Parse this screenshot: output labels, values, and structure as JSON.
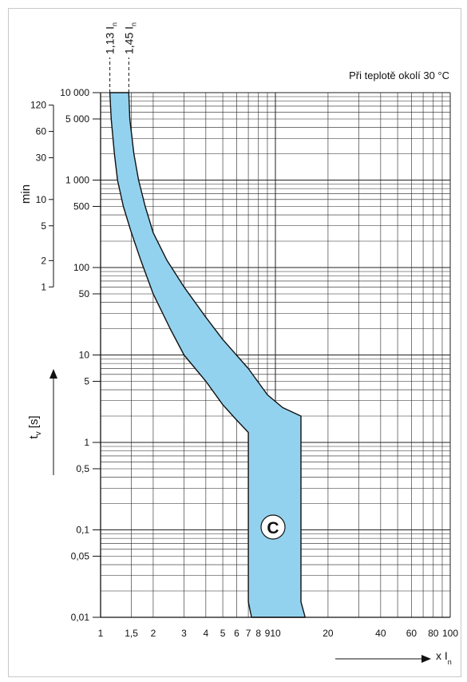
{
  "chart_data": {
    "type": "area",
    "title": "",
    "note": "Při teplotě okolí 30 °C",
    "curve_label": "C",
    "xlabel": {
      "main": "x I",
      "sub": "n"
    },
    "ylabel": {
      "main": "t",
      "sub": "v",
      "unit": "[s]"
    },
    "ylabel_min": "min",
    "xscale": "log",
    "yscale": "log",
    "xlim": [
      1,
      100
    ],
    "ylim": [
      0.01,
      10000
    ],
    "grid": true,
    "x_ticks": [
      {
        "v": 1,
        "label": "1"
      },
      {
        "v": 1.5,
        "label": "1,5"
      },
      {
        "v": 2,
        "label": "2"
      },
      {
        "v": 3,
        "label": "3"
      },
      {
        "v": 4,
        "label": "4"
      },
      {
        "v": 5,
        "label": "5"
      },
      {
        "v": 6,
        "label": "6"
      },
      {
        "v": 7,
        "label": "7"
      },
      {
        "v": 8,
        "label": "8"
      },
      {
        "v": 9,
        "label": "9"
      },
      {
        "v": 10,
        "label": "10"
      },
      {
        "v": 20,
        "label": "20"
      },
      {
        "v": 40,
        "label": "40"
      },
      {
        "v": 60,
        "label": "60"
      },
      {
        "v": 80,
        "label": "80"
      },
      {
        "v": 100,
        "label": "100"
      }
    ],
    "y_ticks": [
      {
        "v": 0.01,
        "label": "0,01"
      },
      {
        "v": 0.05,
        "label": "0,05"
      },
      {
        "v": 0.1,
        "label": "0,1"
      },
      {
        "v": 0.5,
        "label": "0,5"
      },
      {
        "v": 1,
        "label": "1"
      },
      {
        "v": 5,
        "label": "5"
      },
      {
        "v": 10,
        "label": "10"
      },
      {
        "v": 50,
        "label": "50"
      },
      {
        "v": 100,
        "label": "100"
      },
      {
        "v": 500,
        "label": "500"
      },
      {
        "v": 1000,
        "label": "1 000"
      },
      {
        "v": 5000,
        "label": "5 000"
      },
      {
        "v": 10000,
        "label": "10 000"
      }
    ],
    "min_ticks": [
      {
        "v": 1,
        "label": "1"
      },
      {
        "v": 2,
        "label": "2"
      },
      {
        "v": 5,
        "label": "5"
      },
      {
        "v": 10,
        "label": "10"
      },
      {
        "v": 30,
        "label": "30"
      },
      {
        "v": 60,
        "label": "60"
      },
      {
        "v": 120,
        "label": "120"
      }
    ],
    "markers": [
      {
        "v": 1.13,
        "label": "1,13 I",
        "sub": "n"
      },
      {
        "v": 1.45,
        "label": "1,45 I",
        "sub": "n"
      }
    ],
    "band": {
      "lower": [
        {
          "x": 1.13,
          "y": 10000
        },
        {
          "x": 1.15,
          "y": 5000
        },
        {
          "x": 1.2,
          "y": 2000
        },
        {
          "x": 1.25,
          "y": 1000
        },
        {
          "x": 1.35,
          "y": 500
        },
        {
          "x": 1.5,
          "y": 250
        },
        {
          "x": 1.7,
          "y": 120
        },
        {
          "x": 2,
          "y": 50
        },
        {
          "x": 2.5,
          "y": 20
        },
        {
          "x": 3,
          "y": 10
        },
        {
          "x": 4,
          "y": 5
        },
        {
          "x": 5,
          "y": 2.7
        },
        {
          "x": 6,
          "y": 1.8
        },
        {
          "x": 7,
          "y": 1.3
        },
        {
          "x": 7,
          "y": 0.015
        },
        {
          "x": 7.3,
          "y": 0.01
        }
      ],
      "upper": [
        {
          "x": 1.45,
          "y": 10000
        },
        {
          "x": 1.47,
          "y": 5000
        },
        {
          "x": 1.55,
          "y": 2000
        },
        {
          "x": 1.65,
          "y": 1000
        },
        {
          "x": 1.8,
          "y": 500
        },
        {
          "x": 2,
          "y": 250
        },
        {
          "x": 2.4,
          "y": 120
        },
        {
          "x": 3,
          "y": 60
        },
        {
          "x": 4,
          "y": 27
        },
        {
          "x": 5,
          "y": 15
        },
        {
          "x": 7,
          "y": 7
        },
        {
          "x": 9,
          "y": 3.5
        },
        {
          "x": 11,
          "y": 2.5
        },
        {
          "x": 14,
          "y": 2
        },
        {
          "x": 14,
          "y": 0.015
        },
        {
          "x": 14.8,
          "y": 0.01
        }
      ],
      "color": "#93d2ee",
      "outline": "#111111"
    }
  }
}
